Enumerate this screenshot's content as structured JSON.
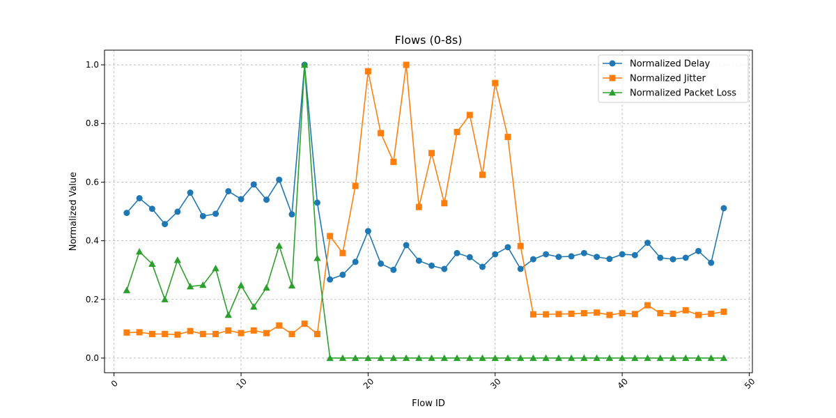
{
  "chart_data": {
    "type": "line",
    "title": "Flows (0-8s)",
    "xlabel": "Flow ID",
    "ylabel": "Normalized Value",
    "xlim": [
      -0.75,
      50.25
    ],
    "ylim": [
      -0.05,
      1.05
    ],
    "xticks": [
      0,
      10,
      20,
      30,
      40,
      50
    ],
    "xtick_labels": [
      "0",
      "10",
      "20",
      "30",
      "40",
      "50"
    ],
    "yticks": [
      0.0,
      0.2,
      0.4,
      0.6,
      0.8,
      1.0
    ],
    "ytick_labels": [
      "0.0",
      "0.2",
      "0.4",
      "0.6",
      "0.8",
      "1.0"
    ],
    "xtick_rotation": 45,
    "grid": true,
    "legend_position": "top-right",
    "x": [
      1,
      2,
      3,
      4,
      5,
      6,
      7,
      8,
      9,
      10,
      11,
      12,
      13,
      14,
      15,
      16,
      17,
      18,
      19,
      20,
      21,
      22,
      23,
      24,
      25,
      26,
      27,
      28,
      29,
      30,
      31,
      32,
      33,
      34,
      35,
      36,
      37,
      38,
      39,
      40,
      41,
      42,
      43,
      44,
      45,
      46,
      47,
      48
    ],
    "series": [
      {
        "name": "Normalized Delay",
        "color": "#1f77b4",
        "marker": "circle",
        "values": [
          0.495,
          0.545,
          0.509,
          0.457,
          0.499,
          0.564,
          0.484,
          0.492,
          0.569,
          0.542,
          0.592,
          0.54,
          0.608,
          0.49,
          1.0,
          0.53,
          0.268,
          0.284,
          0.328,
          0.433,
          0.322,
          0.301,
          0.385,
          0.332,
          0.315,
          0.304,
          0.358,
          0.344,
          0.311,
          0.354,
          0.378,
          0.304,
          0.337,
          0.354,
          0.345,
          0.347,
          0.358,
          0.345,
          0.338,
          0.354,
          0.351,
          0.393,
          0.342,
          0.337,
          0.342,
          0.365,
          0.325,
          0.511
        ]
      },
      {
        "name": "Normalized Jitter",
        "color": "#ff7f0e",
        "marker": "square",
        "values": [
          0.087,
          0.088,
          0.082,
          0.082,
          0.08,
          0.092,
          0.082,
          0.082,
          0.094,
          0.085,
          0.094,
          0.085,
          0.111,
          0.082,
          0.117,
          0.082,
          0.416,
          0.358,
          0.587,
          0.978,
          0.767,
          0.669,
          1.0,
          0.515,
          0.699,
          0.528,
          0.771,
          0.829,
          0.625,
          0.938,
          0.754,
          0.382,
          0.149,
          0.149,
          0.15,
          0.151,
          0.153,
          0.155,
          0.147,
          0.153,
          0.15,
          0.18,
          0.153,
          0.151,
          0.163,
          0.147,
          0.151,
          0.158
        ]
      },
      {
        "name": "Normalized Packet Loss",
        "color": "#2ca02c",
        "marker": "triangle",
        "values": [
          0.231,
          0.363,
          0.321,
          0.2,
          0.334,
          0.244,
          0.249,
          0.306,
          0.147,
          0.248,
          0.175,
          0.24,
          0.383,
          0.247,
          1.0,
          0.341,
          0,
          0,
          0,
          0,
          0,
          0,
          0,
          0,
          0,
          0,
          0,
          0,
          0,
          0,
          0,
          0,
          0,
          0,
          0,
          0,
          0,
          0,
          0,
          0,
          0,
          0,
          0,
          0,
          0,
          0,
          0,
          0
        ]
      }
    ]
  }
}
